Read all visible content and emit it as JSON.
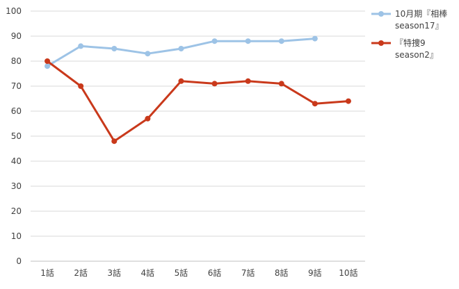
{
  "chart_data": {
    "type": "line",
    "categories": [
      "1話",
      "2話",
      "3話",
      "4話",
      "5話",
      "6話",
      "7話",
      "8話",
      "9話",
      "10話"
    ],
    "ylim": [
      0,
      100
    ],
    "yticks": [
      0,
      10,
      20,
      30,
      40,
      50,
      60,
      70,
      80,
      90,
      100
    ],
    "grid": true,
    "legend_position": "right",
    "series": [
      {
        "name_lines": [
          "10月期『相棒",
          "season17』"
        ],
        "color": "#9DC3E6",
        "values": [
          78,
          86,
          85,
          83,
          85,
          88,
          88,
          88,
          89,
          null
        ]
      },
      {
        "name_lines": [
          "『特捜9",
          "season2』"
        ],
        "color": "#C9391B",
        "values": [
          80,
          70,
          48,
          57,
          72,
          71,
          72,
          71,
          63,
          64
        ]
      }
    ]
  }
}
